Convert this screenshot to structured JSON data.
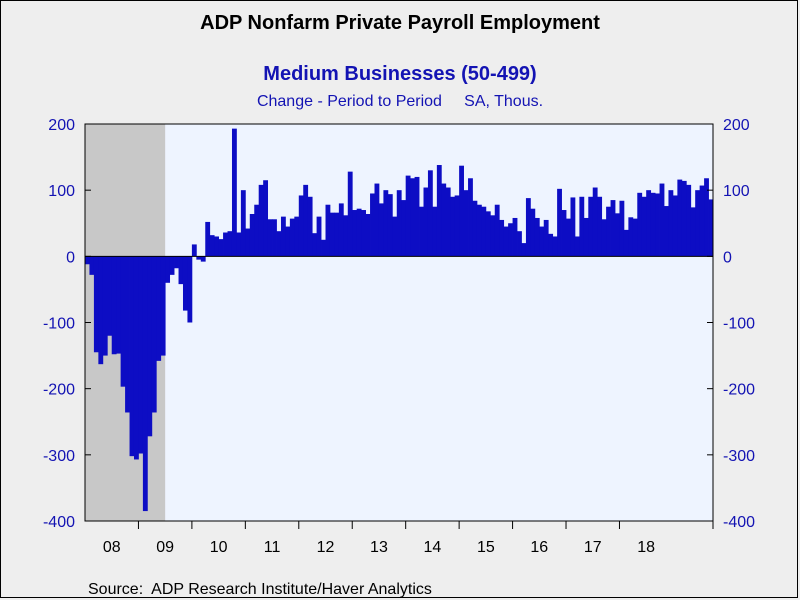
{
  "chart_data": {
    "type": "bar",
    "title": "ADP Nonfarm Private Payroll Employment",
    "subtitle": "Medium Businesses (50-499)",
    "subtitle2": "Change - Period to Period     SA, Thous.",
    "source": "Source:  ADP Research Institute/Haver Analytics",
    "ylim": [
      -400,
      200
    ],
    "y_ticks": [
      "200",
      "100",
      "0",
      "-100",
      "-200",
      "-300",
      "-400"
    ],
    "y_tick_values": [
      200,
      100,
      0,
      -100,
      -200,
      -300,
      -400
    ],
    "x_ticks": [
      "08",
      "09",
      "10",
      "11",
      "12",
      "13",
      "14",
      "15",
      "16",
      "17",
      "18"
    ],
    "year_start": 2008,
    "recession": {
      "start": "2008-01",
      "end": "2009-06"
    },
    "bar_color": "#0d0dc4",
    "recession_color": "#c8c8c8",
    "plot_bg": "#eef4ff",
    "series": [
      {
        "start": "2008-01",
        "values": [
          -12,
          -28,
          -145,
          -163,
          -150,
          -120,
          -148,
          -147,
          -197,
          -236,
          -302,
          -307,
          -298,
          -385,
          -272,
          -236,
          -158,
          -150,
          -40,
          -28,
          -18,
          -42,
          -82,
          -100,
          18,
          -5,
          -8,
          52,
          32,
          30,
          26,
          36,
          38,
          193,
          36,
          100,
          42,
          64,
          78,
          108,
          115,
          56,
          56,
          38,
          60,
          45,
          57,
          60,
          92,
          108,
          90,
          35,
          60,
          25,
          78,
          66,
          66,
          80,
          62,
          128,
          70,
          72,
          70,
          64,
          95,
          110,
          80,
          100,
          94,
          60,
          100,
          85,
          122,
          118,
          120,
          75,
          104,
          130,
          75,
          138,
          110,
          104,
          90,
          92,
          137,
          100,
          118,
          84,
          78,
          75,
          68,
          62,
          78,
          55,
          45,
          50,
          58,
          38,
          20,
          88,
          72,
          58,
          45,
          55,
          34,
          30,
          102,
          70,
          57,
          89,
          30,
          90,
          58,
          90,
          104,
          90,
          56,
          75,
          85,
          65,
          84,
          40,
          59,
          57,
          96,
          90,
          100,
          96,
          95,
          110,
          76,
          100,
          92,
          116,
          114,
          108,
          74,
          100,
          107,
          118,
          86
        ]
      }
    ]
  }
}
